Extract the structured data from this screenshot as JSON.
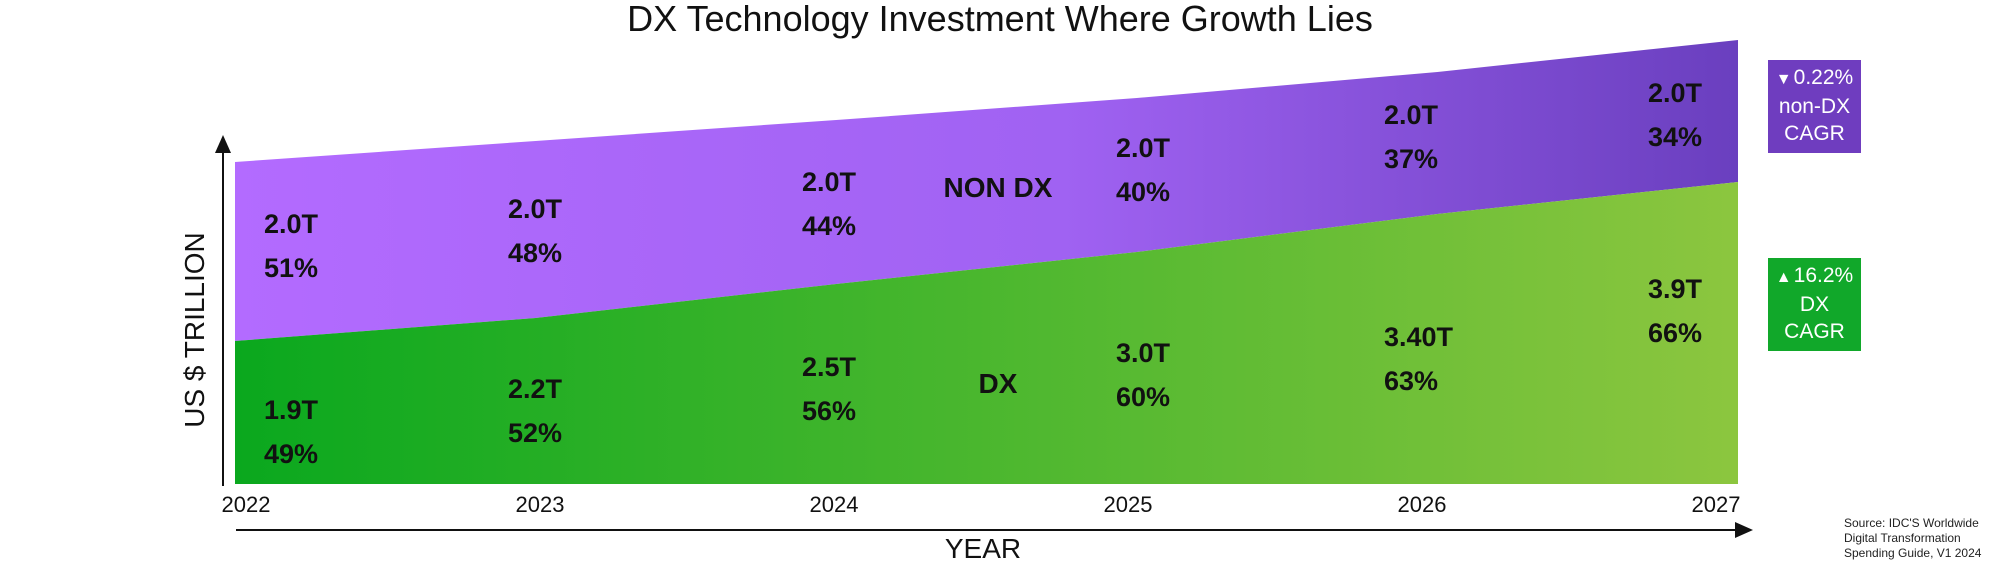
{
  "chart_data": {
    "type": "area",
    "title": "DX Technology Investment Where Growth Lies",
    "xlabel": "YEAR",
    "ylabel": "US $ TRILLION",
    "categories": [
      "2022",
      "2023",
      "2024",
      "2025",
      "2026",
      "2027"
    ],
    "series": [
      {
        "name": "DX",
        "values": [
          1.9,
          2.2,
          2.5,
          3.0,
          3.4,
          3.9
        ],
        "value_labels": [
          "1.9T",
          "2.2T",
          "2.5T",
          "3.0T",
          "3.40T",
          "3.9T"
        ],
        "pct_labels": [
          "49%",
          "52%",
          "56%",
          "60%",
          "63%",
          "66%"
        ],
        "color_start": "#0aa81e",
        "color_end": "#8cc63f"
      },
      {
        "name": "NON DX",
        "values": [
          2.0,
          2.0,
          2.0,
          2.0,
          2.0,
          2.0
        ],
        "value_labels": [
          "2.0T",
          "2.0T",
          "2.0T",
          "2.0T",
          "2.0T",
          "2.0T"
        ],
        "pct_labels": [
          "51%",
          "48%",
          "44%",
          "40%",
          "37%",
          "34%"
        ],
        "color_start": "#b36bff",
        "color_end": "#6a3fbf"
      }
    ],
    "grid": false,
    "legend": "none"
  },
  "callouts": {
    "non_dx": {
      "arrow": "▼",
      "value": "0.22%",
      "line2": "non-DX",
      "line3": "CAGR",
      "color": "#6f3dbf"
    },
    "dx": {
      "arrow": "▲",
      "value": "16.2%",
      "line2": "DX",
      "line3": "CAGR",
      "color": "#11a82a"
    }
  },
  "source": {
    "line1": "Source: IDC'S Worldwide",
    "line2": "Digital Transformation",
    "line3": "Spending Guide, V1 2024"
  }
}
